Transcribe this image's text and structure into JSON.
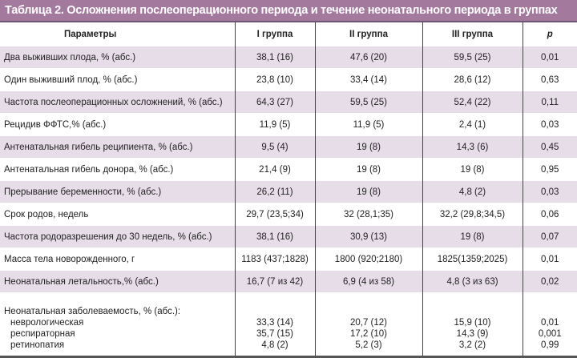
{
  "title": "Таблица 2. Осложнения послеоперационного периода и течение неонатального периода в группах",
  "headers": [
    "Параметры",
    "I группа",
    "II группа",
    "III группа",
    "p"
  ],
  "rows": [
    [
      "Два выживших плода, % (абс.)",
      "38,1 (16)",
      "47,6 (20)",
      "59,5 (25)",
      "0,01"
    ],
    [
      "Один выживший плод, % (абс.)",
      "23,8 (10)",
      "33,4 (14)",
      "28,6 (12)",
      "0,63"
    ],
    [
      "Частота послеоперационных осложнений, % (абс.)",
      "64,3 (27)",
      "59,5 (25)",
      "52,4 (22)",
      "0,11"
    ],
    [
      "Рецидив ФФТС,% (абс.)",
      "11,9 (5)",
      "11,9 (5)",
      "2,4 (1)",
      "0,03"
    ],
    [
      "Антенатальная гибель реципиента, % (абс.)",
      "9,5 (4)",
      "19 (8)",
      "14,3 (6)",
      "0,45"
    ],
    [
      "Антенатальная гибель донора, % (абс.)",
      "21,4 (9)",
      "19 (8)",
      "19 (8)",
      "0,95"
    ],
    [
      "Прерывание беременности, % (абс.)",
      "26,2 (11)",
      "19 (8)",
      "4,8 (2)",
      "0,03"
    ],
    [
      "Срок родов, недель",
      "29,7 (23,5;34)",
      "32 (28,1;35)",
      "32,2 (29,8;34,5)",
      "0,06"
    ],
    [
      "Частота родоразрешения до 30 недель, % (абс.)",
      "38,1 (16)",
      "30,9 (13)",
      "19 (8)",
      "0,07"
    ],
    [
      "Масса тела новорожденного, г",
      "1183 (437;1828)",
      "1800 (920;2180)",
      "1825(1359;2025)",
      "0,01"
    ],
    [
      "Неонатальная летальность,% (абс.)",
      "16,7 (7 из 42)",
      "6,9 (4 из 58)",
      "4,8 (3 из 63)",
      "0,02"
    ]
  ],
  "morbidity": {
    "label": "Неонатальная заболеваемость, % (абс.):",
    "sub": [
      [
        "неврологическая",
        "33,3 (14)",
        "20,7 (12)",
        "15,9 (10)",
        "0,01"
      ],
      [
        "респираторная",
        "35,7 (15)",
        "17,2 (10)",
        "14,3 (9)",
        "0,001"
      ],
      [
        "ретинопатия",
        "4,8 (2)",
        "5,2 (3)",
        "3,2 (2)",
        "0,99"
      ]
    ]
  }
}
